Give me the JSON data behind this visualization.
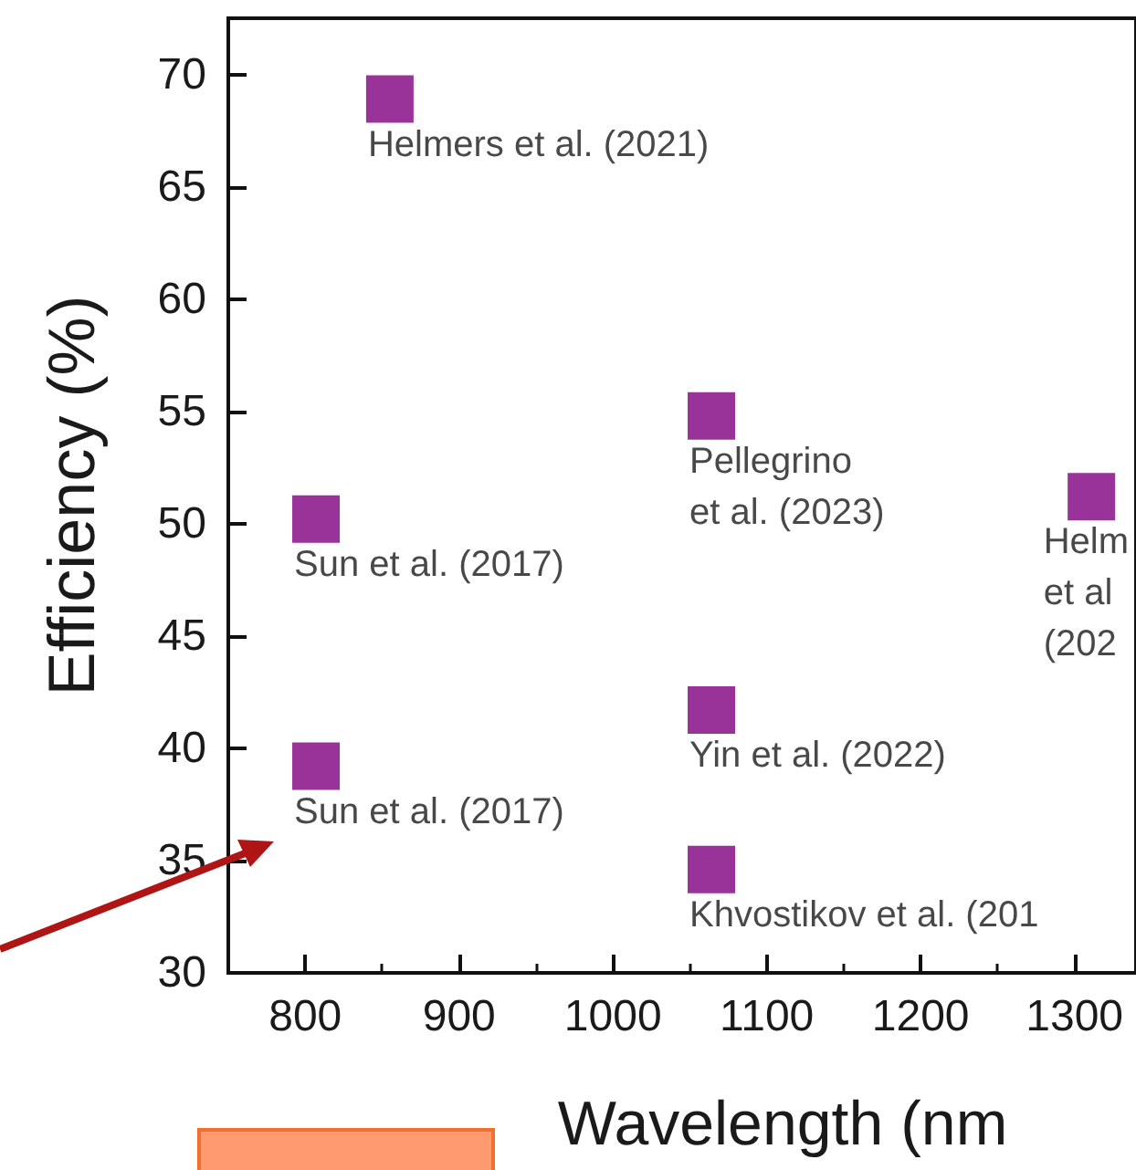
{
  "chart_data": {
    "type": "scatter",
    "xlabel": "Wavelength (nm",
    "ylabel": "Efficiency (%)",
    "x": [
      855,
      807,
      807,
      1064,
      1064,
      1064,
      1311
    ],
    "values": [
      68.9,
      50.2,
      39.2,
      54.8,
      41.7,
      34.6,
      51.2
    ],
    "color": "#800080",
    "marker": "square",
    "grid": false,
    "xlim": [
      750,
      1340
    ],
    "xticks": [
      800,
      900,
      1000,
      1100,
      1200,
      1300
    ],
    "ylim": [
      30,
      72.5
    ],
    "yticks": [
      30,
      35,
      40,
      45,
      50,
      55,
      60,
      65,
      70
    ],
    "annotations": [
      {
        "text": "Helmers et al. (2021)",
        "x": 855,
        "y": 68.9
      },
      {
        "text": "Sun et al. (2017)",
        "x": 807,
        "y": 50.2
      },
      {
        "text": "Sun et al. (2017)",
        "x": 807,
        "y": 39.2
      },
      {
        "text": "Pellegrino\net al. (2023)",
        "x": 1064,
        "y": 54.8
      },
      {
        "text": "Yin et al. (2022)",
        "x": 1064,
        "y": 41.7
      },
      {
        "text": "Khvostikov et al. (201",
        "x": 1064,
        "y": 34.6
      },
      {
        "text": "Helm\net al\n(202",
        "x": 1311,
        "y": 51.2
      }
    ]
  }
}
